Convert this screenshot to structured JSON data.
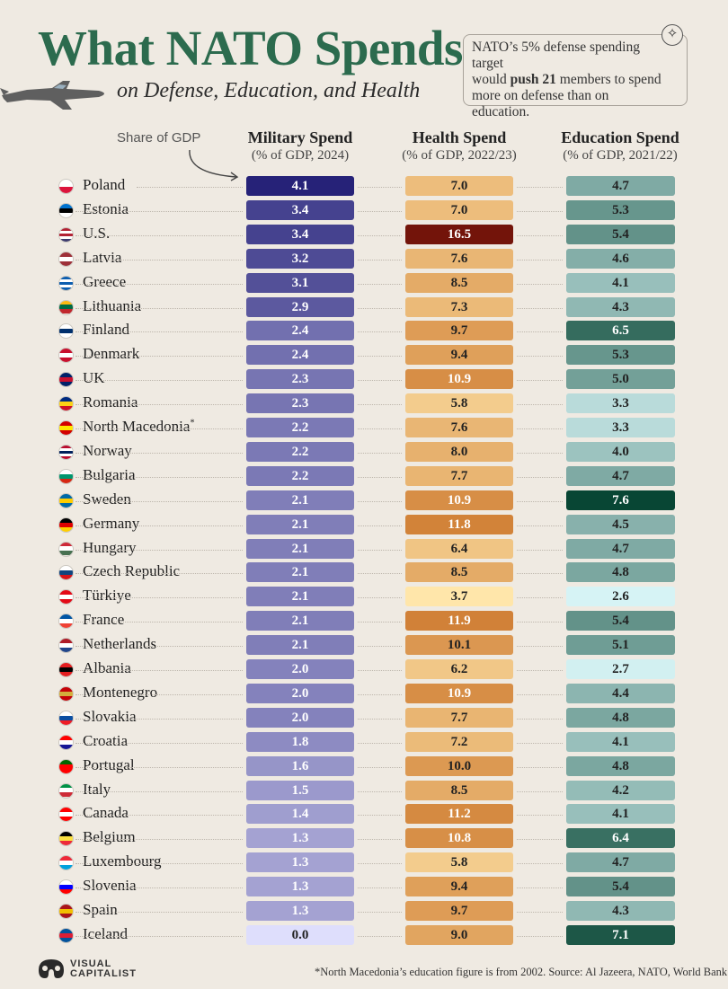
{
  "title": "What NATO Spends",
  "subtitle": "on Defense, Education, and Health",
  "note": {
    "line_1": "NATO’s 5% defense spending target",
    "line_2_pre": "would ",
    "line_2_bold": "push 21",
    "line_2_post": " members to spend",
    "line_3": "more on defense than on education."
  },
  "share_label": "Share of GDP",
  "chart_data": {
    "type": "table",
    "title": "What NATO Spends on Defense, Education, and Health",
    "columns": [
      {
        "key": "military",
        "name": "Military Spend",
        "sub": "(% of GDP, 2024)"
      },
      {
        "key": "health",
        "name": "Health Spend",
        "sub": "(% of GDP, 2022/23)"
      },
      {
        "key": "education",
        "name": "Education Spend",
        "sub": "(% of GDP, 2021/22)"
      }
    ],
    "rows": [
      {
        "country": "Poland",
        "military": 4.1,
        "health": 7.0,
        "education": 4.7
      },
      {
        "country": "Estonia",
        "military": 3.4,
        "health": 7.0,
        "education": 5.3
      },
      {
        "country": "U.S.",
        "military": 3.4,
        "health": 16.5,
        "education": 5.4
      },
      {
        "country": "Latvia",
        "military": 3.2,
        "health": 7.6,
        "education": 4.6
      },
      {
        "country": "Greece",
        "military": 3.1,
        "health": 8.5,
        "education": 4.1
      },
      {
        "country": "Lithuania",
        "military": 2.9,
        "health": 7.3,
        "education": 4.3
      },
      {
        "country": "Finland",
        "military": 2.4,
        "health": 9.7,
        "education": 6.5
      },
      {
        "country": "Denmark",
        "military": 2.4,
        "health": 9.4,
        "education": 5.3
      },
      {
        "country": "UK",
        "military": 2.3,
        "health": 10.9,
        "education": 5.0
      },
      {
        "country": "Romania",
        "military": 2.3,
        "health": 5.8,
        "education": 3.3
      },
      {
        "country": "North Macedonia",
        "footnote_mark": "*",
        "military": 2.2,
        "health": 7.6,
        "education": 3.3
      },
      {
        "country": "Norway",
        "military": 2.2,
        "health": 8.0,
        "education": 4.0
      },
      {
        "country": "Bulgaria",
        "military": 2.2,
        "health": 7.7,
        "education": 4.7
      },
      {
        "country": "Sweden",
        "military": 2.1,
        "health": 10.9,
        "education": 7.6
      },
      {
        "country": "Germany",
        "military": 2.1,
        "health": 11.8,
        "education": 4.5
      },
      {
        "country": "Hungary",
        "military": 2.1,
        "health": 6.4,
        "education": 4.7
      },
      {
        "country": "Czech Republic",
        "military": 2.1,
        "health": 8.5,
        "education": 4.8
      },
      {
        "country": "Türkiye",
        "military": 2.1,
        "health": 3.7,
        "education": 2.6
      },
      {
        "country": "France",
        "military": 2.1,
        "health": 11.9,
        "education": 5.4
      },
      {
        "country": "Netherlands",
        "military": 2.1,
        "health": 10.1,
        "education": 5.1
      },
      {
        "country": "Albania",
        "military": 2.0,
        "health": 6.2,
        "education": 2.7
      },
      {
        "country": "Montenegro",
        "military": 2.0,
        "health": 10.9,
        "education": 4.4
      },
      {
        "country": "Slovakia",
        "military": 2.0,
        "health": 7.7,
        "education": 4.8
      },
      {
        "country": "Croatia",
        "military": 1.8,
        "health": 7.2,
        "education": 4.1
      },
      {
        "country": "Portugal",
        "military": 1.6,
        "health": 10.0,
        "education": 4.8
      },
      {
        "country": "Italy",
        "military": 1.5,
        "health": 8.5,
        "education": 4.2
      },
      {
        "country": "Canada",
        "military": 1.4,
        "health": 11.2,
        "education": 4.1
      },
      {
        "country": "Belgium",
        "military": 1.3,
        "health": 10.8,
        "education": 6.4
      },
      {
        "country": "Luxembourg",
        "military": 1.3,
        "health": 5.8,
        "education": 4.7
      },
      {
        "country": "Slovenia",
        "military": 1.3,
        "health": 9.4,
        "education": 5.4
      },
      {
        "country": "Spain",
        "military": 1.3,
        "health": 9.7,
        "education": 4.3
      },
      {
        "country": "Iceland",
        "military": 0.0,
        "health": 9.0,
        "education": 7.1
      }
    ]
  },
  "flags": {
    "Poland": [
      "#ffffff",
      "#dc143c"
    ],
    "Estonia": [
      "#0072ce",
      "#000000",
      "#ffffff"
    ],
    "U.S.": [
      "#b22234",
      "#ffffff",
      "#b22234",
      "#ffffff",
      "#3c3b6e"
    ],
    "Latvia": [
      "#9e3039",
      "#ffffff",
      "#9e3039"
    ],
    "Greece": [
      "#0d5eaf",
      "#ffffff",
      "#0d5eaf",
      "#ffffff",
      "#0d5eaf"
    ],
    "Lithuania": [
      "#fdb913",
      "#006a44",
      "#c1272d"
    ],
    "Finland": [
      "#ffffff",
      "#002f6c",
      "#ffffff"
    ],
    "Denmark": [
      "#c8102e",
      "#ffffff",
      "#c8102e"
    ],
    "UK": [
      "#012169",
      "#c8102e",
      "#012169"
    ],
    "Romania": [
      "#002b7f",
      "#fcd116",
      "#ce1126"
    ],
    "North Macedonia": [
      "#d20000",
      "#ffe600",
      "#d20000"
    ],
    "Norway": [
      "#ba0c2f",
      "#ffffff",
      "#00205b",
      "#ffffff",
      "#ba0c2f"
    ],
    "Bulgaria": [
      "#ffffff",
      "#00966e",
      "#d62612"
    ],
    "Sweden": [
      "#006aa7",
      "#fecc00",
      "#006aa7"
    ],
    "Germany": [
      "#000000",
      "#dd0000",
      "#ffce00"
    ],
    "Hungary": [
      "#ce2939",
      "#ffffff",
      "#477050"
    ],
    "Czech Republic": [
      "#ffffff",
      "#11457e",
      "#d7141a"
    ],
    "Türkiye": [
      "#e30a17",
      "#ffffff",
      "#e30a17"
    ],
    "France": [
      "#0055a4",
      "#ffffff",
      "#ef4135"
    ],
    "Netherlands": [
      "#ae1c28",
      "#ffffff",
      "#21468b"
    ],
    "Albania": [
      "#e41e20",
      "#000000",
      "#e41e20"
    ],
    "Montenegro": [
      "#c40308",
      "#d3ae3b",
      "#c40308"
    ],
    "Slovakia": [
      "#ffffff",
      "#0b4ea2",
      "#ee1c25"
    ],
    "Croatia": [
      "#ff0000",
      "#ffffff",
      "#171796"
    ],
    "Portugal": [
      "#006600",
      "#ff0000",
      "#ff0000"
    ],
    "Italy": [
      "#009246",
      "#ffffff",
      "#ce2b37"
    ],
    "Canada": [
      "#ff0000",
      "#ffffff",
      "#ff0000"
    ],
    "Belgium": [
      "#000000",
      "#fae042",
      "#ed2939"
    ],
    "Luxembourg": [
      "#ed2939",
      "#ffffff",
      "#00a1de"
    ],
    "Slovenia": [
      "#ffffff",
      "#0000ff",
      "#ff0000"
    ],
    "Spain": [
      "#aa151b",
      "#f1bf00",
      "#aa151b"
    ],
    "Iceland": [
      "#02529c",
      "#dc1e35",
      "#02529c"
    ]
  },
  "footnote": "*North Macedonia’s education figure is from 2002. Source: Al Jazeera, NATO, World Bank",
  "brand": {
    "line_1": "VISUAL",
    "line_2": "CAPITALIST"
  },
  "colors": {
    "title": "#2c6b4e",
    "background": "#efeae2"
  }
}
